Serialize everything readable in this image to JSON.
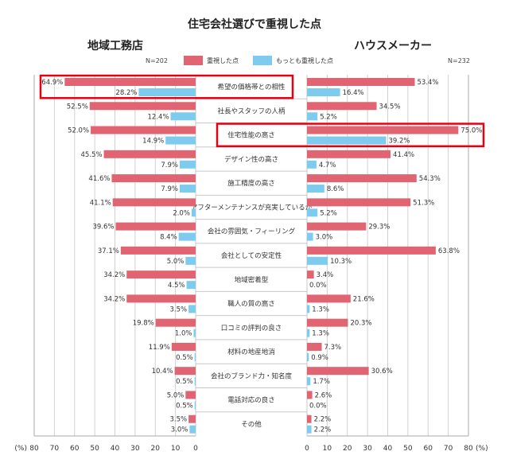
{
  "chart_data": {
    "type": "bar",
    "title": "住宅会社選びで重視した点",
    "unit_label": "(%)",
    "xlim": [
      0,
      80
    ],
    "ticks": [
      0,
      10,
      20,
      30,
      40,
      50,
      60,
      70,
      80
    ],
    "grid": true,
    "legend": {
      "position": "top-center",
      "entries": [
        {
          "name": "重視した点",
          "color": "#E06472"
        },
        {
          "name": "もっとも重視した点",
          "color": "#7ECBF0"
        }
      ]
    },
    "categories": [
      "希望の価格帯との相性",
      "社長やスタッフの人柄",
      "住宅性能の高さ",
      "デザイン性の高さ",
      "施工精度の高さ",
      "アフターメンテナンスが充実しているか",
      "会社の雰囲気・フィーリング",
      "会社としての安定性",
      "地域密着型",
      "職人の質の高さ",
      "口コミの評判の良さ",
      "材料の地産地消",
      "会社のブランド力・知名度",
      "電話対応の良さ",
      "その他"
    ],
    "panels": [
      {
        "name": "地域工務店",
        "n": "N=202",
        "direction": "left",
        "series": [
          {
            "name": "重視した点",
            "values": [
              64.9,
              52.5,
              52.0,
              45.5,
              41.6,
              41.1,
              39.6,
              37.1,
              34.2,
              34.2,
              19.8,
              11.9,
              10.4,
              5.0,
              3.5
            ]
          },
          {
            "name": "もっとも重視した点",
            "values": [
              28.2,
              12.4,
              14.9,
              7.9,
              7.9,
              2.0,
              8.4,
              5.0,
              4.5,
              3.5,
              1.0,
              0.5,
              0.5,
              0.5,
              3.0
            ]
          }
        ]
      },
      {
        "name": "ハウスメーカー",
        "n": "N=232",
        "direction": "right",
        "series": [
          {
            "name": "重視した点",
            "values": [
              53.4,
              34.5,
              75.0,
              41.4,
              54.3,
              51.3,
              29.3,
              63.8,
              3.4,
              21.6,
              20.3,
              7.3,
              30.6,
              2.6,
              2.2
            ]
          },
          {
            "name": "もっとも重視した点",
            "values": [
              16.4,
              5.2,
              39.2,
              4.7,
              8.6,
              5.2,
              3.0,
              10.3,
              0.0,
              1.3,
              1.3,
              0.9,
              1.7,
              0.0,
              2.2
            ]
          }
        ]
      }
    ],
    "highlighted": [
      {
        "panel": "地域工務店",
        "category": "希望の価格帯との相性"
      },
      {
        "panel": "ハウスメーカー",
        "category": "住宅性能の高さ"
      }
    ],
    "highlight_color": "#E60012"
  }
}
